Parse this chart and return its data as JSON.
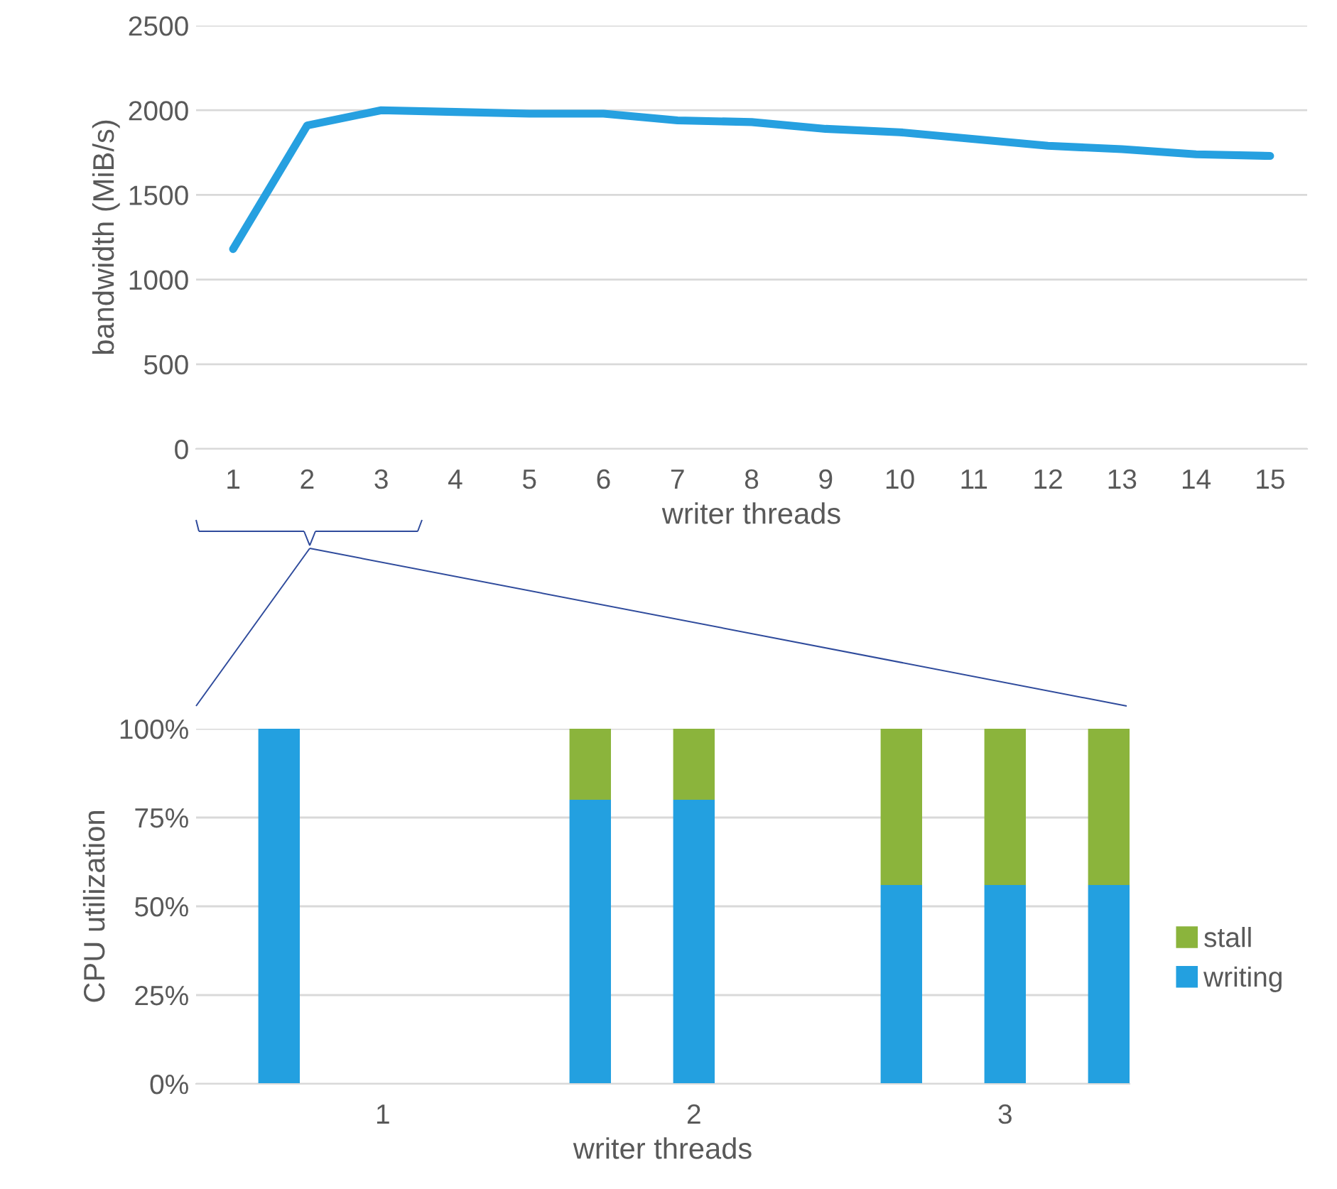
{
  "chart_data": [
    {
      "type": "line",
      "ylabel": "bandwidth (MiB/s)",
      "xlabel": "writer threads",
      "categories": [
        "1",
        "2",
        "3",
        "4",
        "5",
        "6",
        "7",
        "8",
        "9",
        "10",
        "11",
        "12",
        "13",
        "14",
        "15"
      ],
      "series": [
        {
          "color": "#26a0e0",
          "values": [
            1180,
            1910,
            2000,
            1990,
            1980,
            1980,
            1940,
            1930,
            1890,
            1870,
            1830,
            1790,
            1770,
            1740,
            1730
          ]
        }
      ],
      "ylim": [
        0,
        2500
      ],
      "yticks": [
        0,
        500,
        1000,
        1500,
        2000,
        2500
      ],
      "grid": "y",
      "legend": false,
      "marker": "none",
      "line_style": "solid"
    },
    {
      "type": "bar",
      "stacked": true,
      "ylabel": "CPU utilization",
      "xlabel": "writer threads",
      "categories": [
        null,
        "1",
        null,
        null,
        "2",
        null,
        null,
        "3",
        null
      ],
      "series": [
        {
          "name": "writing",
          "color": "#23a0e0",
          "values": [
            100,
            null,
            null,
            80,
            80,
            null,
            56,
            56,
            56
          ]
        },
        {
          "name": "stall",
          "color": "#8bb43c",
          "values": [
            0,
            null,
            null,
            20,
            20,
            null,
            44,
            44,
            44
          ]
        }
      ],
      "ylim": [
        0,
        100
      ],
      "yticks": [
        {
          "value": 0,
          "label": "0%"
        },
        {
          "value": 25,
          "label": "25%"
        },
        {
          "value": 50,
          "label": "50%"
        },
        {
          "value": 75,
          "label": "75%"
        },
        {
          "value": 100,
          "label": "100%"
        }
      ],
      "grid": "y",
      "legend": "right"
    }
  ]
}
